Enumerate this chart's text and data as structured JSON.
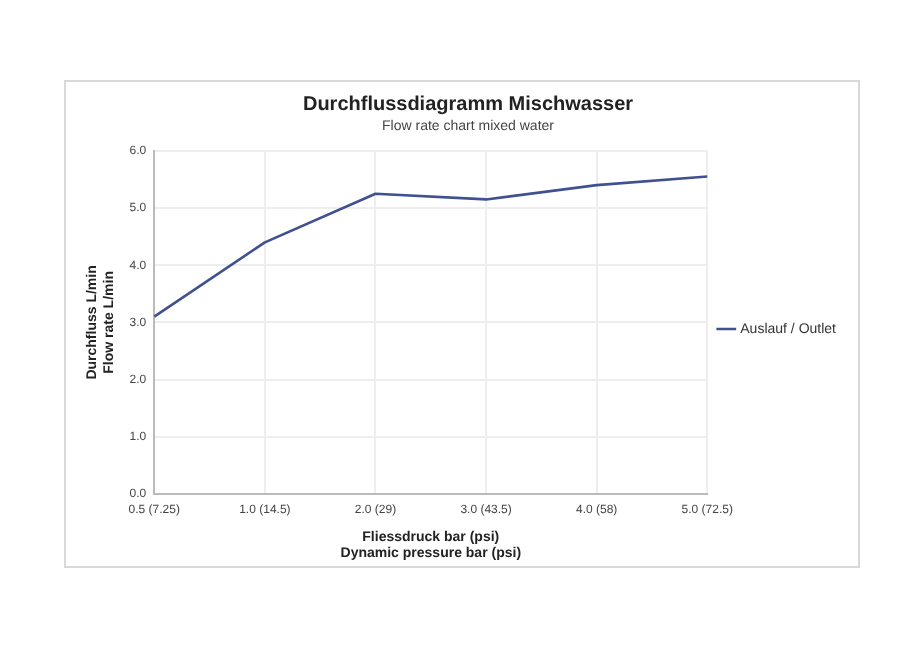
{
  "chart_data": {
    "type": "line",
    "title": "Durchflussdiagramm Mischwasser",
    "subtitle": "Flow rate chart mixed water",
    "xlabel": "Fliessdruck bar (psi)\nDynamic pressure bar (psi)",
    "ylabel": "Durchfluss L/min\nFlow rate L/min",
    "categories": [
      "0.5 (7.25)",
      "1.0 (14.5)",
      "2.0 (29)",
      "3.0 (43.5)",
      "4.0 (58)",
      "5.0 (72.5)"
    ],
    "series": [
      {
        "name": "Auslauf / Outlet",
        "color": "#3f5190",
        "values": [
          3.1,
          4.4,
          5.25,
          5.15,
          5.4,
          5.55
        ]
      }
    ],
    "ylim": [
      0,
      6
    ],
    "yticks": [
      {
        "value": 0,
        "label": "0.0"
      },
      {
        "value": 1,
        "label": "1.0"
      },
      {
        "value": 2,
        "label": "2.0"
      },
      {
        "value": 3,
        "label": "3.0"
      },
      {
        "value": 4,
        "label": "4.0"
      },
      {
        "value": 5,
        "label": "5.0"
      },
      {
        "value": 6,
        "label": "6.0"
      }
    ],
    "grid": true,
    "legend": "right",
    "marker": "none",
    "line_style": "solid"
  }
}
